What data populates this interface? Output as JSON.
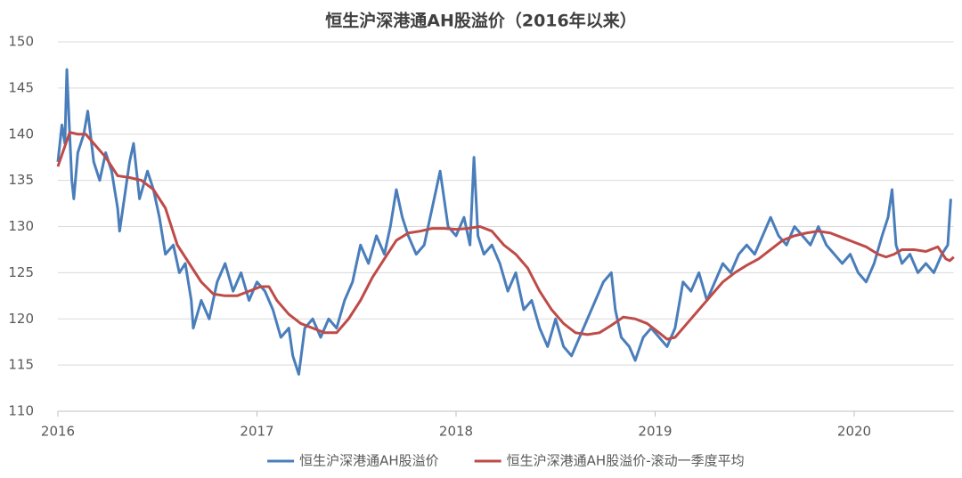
{
  "chart_data": {
    "type": "line",
    "title": "恒生沪深港通AH股溢价（2016年以来）",
    "xlim": [
      2016,
      2020.5
    ],
    "xticks": [
      2016,
      2017,
      2018,
      2019,
      2020
    ],
    "ylim": [
      110,
      150
    ],
    "yticks": [
      110,
      115,
      120,
      125,
      130,
      135,
      140,
      145,
      150
    ],
    "grid": true,
    "legend": "bottom",
    "series": [
      {
        "name": "恒生沪深港通AH股溢价",
        "color": "#4a7ebb",
        "x": [
          2016.0,
          2016.02,
          2016.035,
          2016.045,
          2016.055,
          2016.07,
          2016.08,
          2016.1,
          2016.13,
          2016.15,
          2016.18,
          2016.21,
          2016.24,
          2016.27,
          2016.3,
          2016.31,
          2016.34,
          2016.36,
          2016.38,
          2016.41,
          2016.45,
          2016.48,
          2016.51,
          2016.54,
          2016.58,
          2016.61,
          2016.64,
          2016.67,
          2016.68,
          2016.72,
          2016.76,
          2016.8,
          2016.84,
          2016.88,
          2016.92,
          2016.96,
          2017.0,
          2017.04,
          2017.08,
          2017.12,
          2017.16,
          2017.18,
          2017.21,
          2017.24,
          2017.28,
          2017.32,
          2017.36,
          2017.4,
          2017.44,
          2017.48,
          2017.52,
          2017.56,
          2017.6,
          2017.64,
          2017.67,
          2017.7,
          2017.73,
          2017.76,
          2017.8,
          2017.84,
          2017.88,
          2017.92,
          2017.96,
          2018.0,
          2018.04,
          2018.07,
          2018.09,
          2018.11,
          2018.14,
          2018.18,
          2018.22,
          2018.26,
          2018.3,
          2018.34,
          2018.38,
          2018.42,
          2018.46,
          2018.5,
          2018.54,
          2018.58,
          2018.62,
          2018.66,
          2018.7,
          2018.74,
          2018.78,
          2018.8,
          2018.83,
          2018.87,
          2018.9,
          2018.94,
          2018.98,
          2019.02,
          2019.06,
          2019.1,
          2019.14,
          2019.18,
          2019.22,
          2019.26,
          2019.3,
          2019.34,
          2019.38,
          2019.42,
          2019.46,
          2019.5,
          2019.54,
          2019.58,
          2019.62,
          2019.66,
          2019.7,
          2019.74,
          2019.78,
          2019.82,
          2019.86,
          2019.9,
          2019.94,
          2019.98,
          2020.02,
          2020.06,
          2020.1,
          2020.14,
          2020.17,
          2020.19,
          2020.21,
          2020.24,
          2020.28,
          2020.32,
          2020.36,
          2020.4,
          2020.44,
          2020.47,
          2020.485
        ],
        "values": [
          137,
          141,
          139,
          147,
          142,
          135,
          133,
          138,
          140,
          142.5,
          137,
          135,
          138,
          136,
          132,
          129.5,
          134,
          137,
          139,
          133,
          136,
          134,
          131,
          127,
          128,
          125,
          126,
          122,
          119,
          122,
          120,
          124,
          126,
          123,
          125,
          122,
          124,
          123,
          121,
          118,
          119,
          116,
          114,
          119,
          120,
          118,
          120,
          119,
          122,
          124,
          128,
          126,
          129,
          127,
          130,
          134,
          131,
          129,
          127,
          128,
          132,
          136,
          130,
          129,
          131,
          128,
          137.5,
          129,
          127,
          128,
          126,
          123,
          125,
          121,
          122,
          119,
          117,
          120,
          117,
          116,
          118,
          120,
          122,
          124,
          125,
          121,
          118,
          117,
          115.5,
          118,
          119,
          118,
          117,
          119,
          124,
          123,
          125,
          122,
          124,
          126,
          125,
          127,
          128,
          127,
          129,
          131,
          129,
          128,
          130,
          129,
          128,
          130,
          128,
          127,
          126,
          127,
          125,
          124,
          126,
          129,
          131,
          134,
          128,
          126,
          127,
          125,
          126,
          125,
          127,
          128,
          133
        ]
      },
      {
        "name": "恒生沪深港通AH股溢价-滚动一季度平均",
        "color": "#be4b48",
        "x": [
          2016.0,
          2016.04,
          2016.06,
          2016.1,
          2016.14,
          2016.18,
          2016.24,
          2016.3,
          2016.36,
          2016.42,
          2016.48,
          2016.54,
          2016.6,
          2016.66,
          2016.72,
          2016.78,
          2016.84,
          2016.9,
          2016.96,
          2017.02,
          2017.06,
          2017.1,
          2017.16,
          2017.22,
          2017.28,
          2017.34,
          2017.4,
          2017.46,
          2017.52,
          2017.58,
          2017.64,
          2017.7,
          2017.76,
          2017.82,
          2017.88,
          2017.94,
          2018.0,
          2018.06,
          2018.12,
          2018.18,
          2018.24,
          2018.3,
          2018.36,
          2018.42,
          2018.48,
          2018.54,
          2018.6,
          2018.66,
          2018.72,
          2018.78,
          2018.84,
          2018.9,
          2018.96,
          2019.02,
          2019.06,
          2019.1,
          2019.16,
          2019.22,
          2019.28,
          2019.34,
          2019.4,
          2019.46,
          2019.52,
          2019.58,
          2019.64,
          2019.7,
          2019.76,
          2019.82,
          2019.88,
          2019.94,
          2020.0,
          2020.06,
          2020.12,
          2020.16,
          2020.2,
          2020.24,
          2020.3,
          2020.36,
          2020.42,
          2020.46,
          2020.48,
          2020.5
        ],
        "values": [
          136.5,
          139,
          140.2,
          140,
          140,
          139,
          137.5,
          135.5,
          135.3,
          135,
          134,
          132,
          128,
          126,
          124,
          122.7,
          122.5,
          122.5,
          123,
          123.5,
          123.5,
          122,
          120.5,
          119.5,
          119,
          118.5,
          118.5,
          120,
          122,
          124.5,
          126.5,
          128.5,
          129.3,
          129.5,
          129.8,
          129.8,
          129.7,
          129.8,
          130,
          129.5,
          128,
          127,
          125.5,
          123,
          121,
          119.5,
          118.5,
          118.3,
          118.5,
          119.3,
          120.2,
          120,
          119.5,
          118.5,
          117.8,
          118,
          119.5,
          121,
          122.5,
          124,
          125,
          125.8,
          126.5,
          127.5,
          128.5,
          129,
          129.3,
          129.5,
          129.3,
          128.8,
          128.3,
          127.8,
          127,
          126.7,
          127,
          127.5,
          127.5,
          127.3,
          127.8,
          126.5,
          126.3,
          126.7
        ]
      }
    ]
  }
}
